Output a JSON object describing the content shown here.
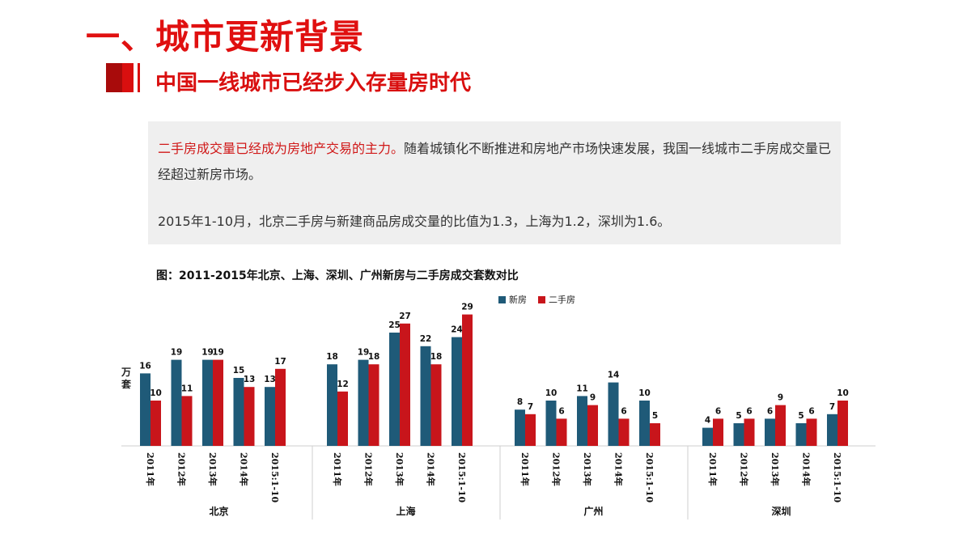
{
  "header": {
    "title": "一、城市更新背景",
    "subtitle": "中国一线城市已经步入存量房时代"
  },
  "summary": {
    "highlight": "二手房成交量已经成为房地产交易的主力。",
    "line1_rest": "随着城镇化不断推进和房地产市场快速发展，我国一线城市二手房成交量已经超过新房市场。",
    "line2": "2015年1-10月，北京二手房与新建商品房成交量的比值为1.3，上海为1.2，深圳为1.6。"
  },
  "chart_data": {
    "type": "bar",
    "title": "图：2011-2015年北京、上海、深圳、广州新房与二手房成交套数对比",
    "ylabel": "万套",
    "ylim": [
      0,
      30
    ],
    "legend_position": "top-center",
    "grid": false,
    "colors": {
      "新房": "#1f5a78",
      "二手房": "#c8151b"
    },
    "groups": [
      "北京",
      "上海",
      "广州",
      "深圳"
    ],
    "categories": [
      "2011年",
      "2012年",
      "2013年",
      "2014年",
      "2015:1-10"
    ],
    "series": [
      {
        "name": "新房",
        "values": [
          [
            16,
            19,
            19,
            15,
            13
          ],
          [
            18,
            19,
            25,
            22,
            24
          ],
          [
            8,
            10,
            11,
            14,
            10
          ],
          [
            4,
            5,
            6,
            5,
            7
          ]
        ]
      },
      {
        "name": "二手房",
        "values": [
          [
            10,
            11,
            19,
            13,
            17
          ],
          [
            12,
            18,
            27,
            18,
            29
          ],
          [
            7,
            6,
            9,
            6,
            5
          ],
          [
            6,
            6,
            9,
            6,
            10
          ]
        ]
      }
    ]
  }
}
